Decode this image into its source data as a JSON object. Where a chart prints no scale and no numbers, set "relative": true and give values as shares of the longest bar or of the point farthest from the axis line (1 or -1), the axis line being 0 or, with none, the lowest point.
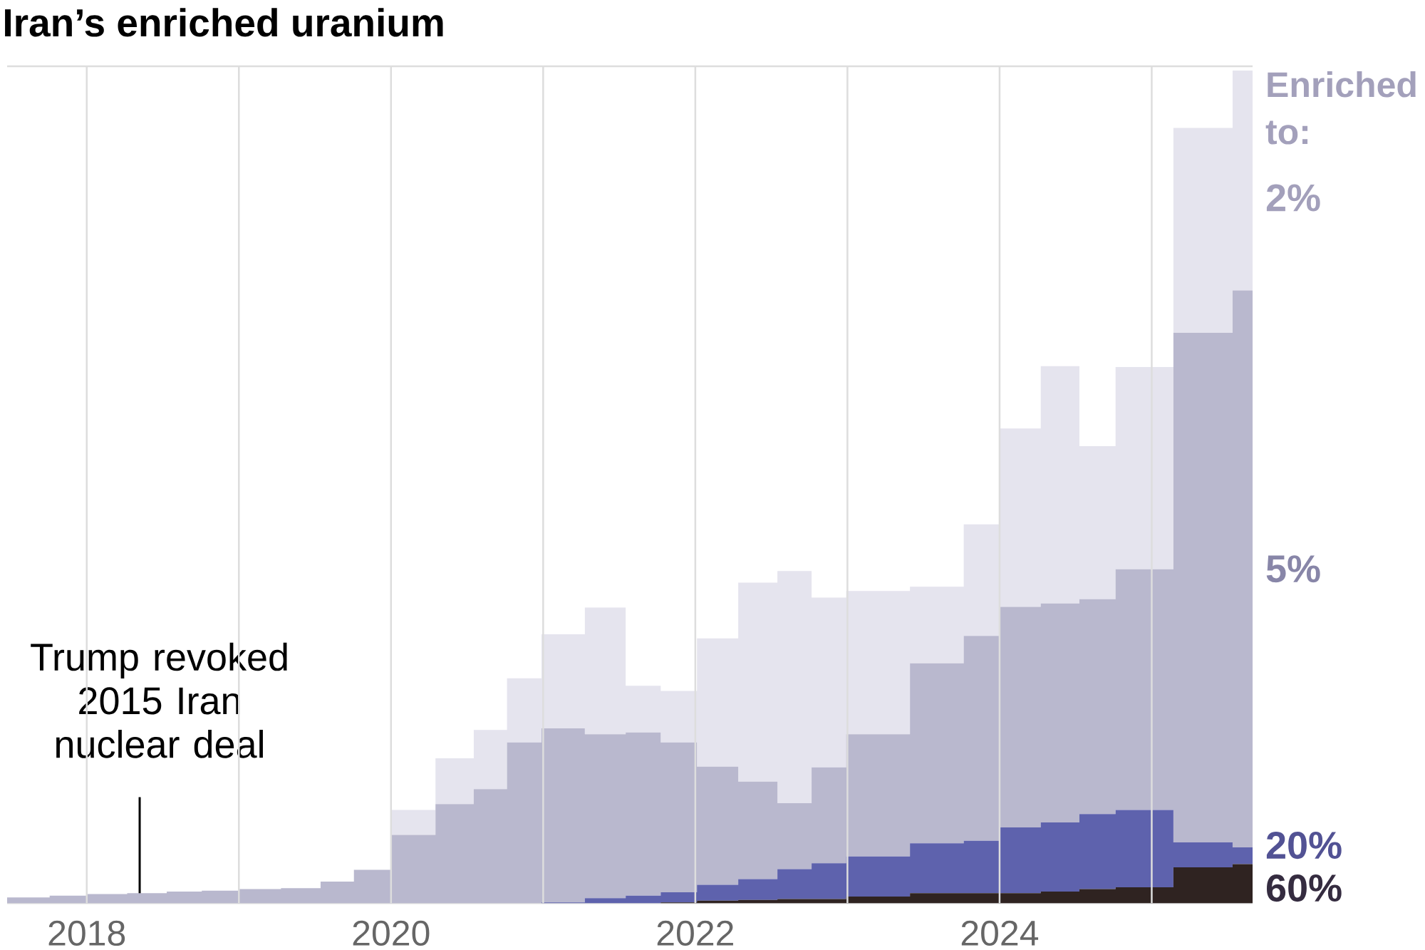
{
  "chart_data": {
    "type": "area",
    "title": "Iran’s enriched uranium",
    "legend_title": "Enriched to:",
    "relative": true,
    "stacked": true,
    "grid": "x",
    "x": [
      "2017-06-24",
      "2017-10-04",
      "2018-01-01",
      "2018-04-08",
      "2018-07-12",
      "2018-10-04",
      "2019-01-01",
      "2019-04-12",
      "2019-07-16",
      "2019-10-04",
      "2020-01-03",
      "2020-04-17",
      "2020-07-18",
      "2020-10-06",
      "2020-12-28",
      "2021-04-11",
      "2021-07-18",
      "2021-10-10",
      "2022-01-05",
      "2022-04-14",
      "2022-07-17",
      "2022-10-07",
      "2022-12-29",
      "2023-05-31",
      "2023-10-07",
      "2024-01-01",
      "2024-04-09",
      "2024-07-11",
      "2024-10-06",
      "2025-02-22",
      "2025-07-14",
      "2025-08-31"
    ],
    "xlim": [
      "2017-06-24",
      "2025-08-31"
    ],
    "xticks": [
      {
        "value": "2018",
        "label": "2018"
      },
      {
        "value": "2019",
        "label": null
      },
      {
        "value": "2020",
        "label": "2020"
      },
      {
        "value": "2021",
        "label": null
      },
      {
        "value": "2022",
        "label": "2022"
      },
      {
        "value": "2023",
        "label": null
      },
      {
        "value": "2024",
        "label": "2024"
      },
      {
        "value": "2025",
        "label": null
      }
    ],
    "series": [
      {
        "name": "60%",
        "color": "#2f2321",
        "values": [
          0,
          0,
          0,
          0,
          0,
          0,
          0,
          0,
          0,
          0,
          0,
          0,
          0,
          0,
          0,
          0,
          0,
          0.001,
          0.003,
          0.004,
          0.005,
          0.005,
          0.008,
          0.012,
          0.012,
          0.012,
          0.014,
          0.017,
          0.019,
          0.043,
          0.047,
          0.047
        ]
      },
      {
        "name": "20%",
        "color": "#5e62ad",
        "values": [
          0,
          0,
          0,
          0,
          0,
          0,
          0,
          0,
          0,
          0,
          0,
          0,
          0,
          0,
          0.001,
          0.006,
          0.009,
          0.012,
          0.019,
          0.025,
          0.036,
          0.043,
          0.048,
          0.06,
          0.063,
          0.079,
          0.083,
          0.09,
          0.093,
          0.03,
          0.02,
          0.02
        ]
      },
      {
        "name": "5%",
        "color": "#b9b8ce",
        "values": [
          0.007,
          0.009,
          0.011,
          0.012,
          0.014,
          0.015,
          0.017,
          0.018,
          0.026,
          0.04,
          0.082,
          0.119,
          0.137,
          0.193,
          0.209,
          0.197,
          0.196,
          0.18,
          0.142,
          0.117,
          0.079,
          0.115,
          0.147,
          0.216,
          0.246,
          0.265,
          0.263,
          0.258,
          0.289,
          0.612,
          0.669,
          0.669
        ]
      },
      {
        "name": "2%",
        "color": "#e5e4ee",
        "values": [
          0,
          0,
          0,
          0,
          0,
          0,
          0,
          0,
          0,
          0,
          0.03,
          0.055,
          0.071,
          0.077,
          0.113,
          0.152,
          0.056,
          0.062,
          0.154,
          0.239,
          0.279,
          0.204,
          0.172,
          0.092,
          0.134,
          0.214,
          0.285,
          0.184,
          0.243,
          0.246,
          0.264,
          0.264
        ]
      }
    ],
    "ref_lines": [
      {
        "axis": "x",
        "value": "2018-05-08",
        "label": "Trump revoked 2015 Iran nuclear deal",
        "color": "#000000"
      }
    ]
  }
}
